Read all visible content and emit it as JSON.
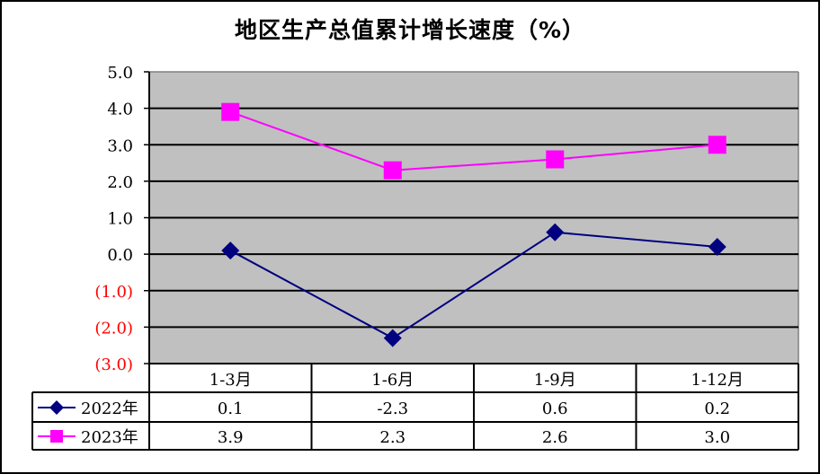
{
  "title": "地区生产总值累计增长速度（%）",
  "colors": {
    "plot_bg": "#C0C0C0",
    "series_2022": "#000080",
    "series_2023": "#FF00FF",
    "negative_tick": "#FF0000",
    "positive_tick": "#000000"
  },
  "y_ticks": [
    "5.0",
    "4.0",
    "3.0",
    "2.0",
    "1.0",
    "0.0",
    "(1.0)",
    "(2.0)",
    "(3.0)"
  ],
  "table": {
    "headers": [
      "1-3月",
      "1-6月",
      "1-9月",
      "1-12月"
    ],
    "rows": [
      {
        "label": "2022年",
        "marker": "diamond-icon",
        "values": [
          "0.1",
          "-2.3",
          "0.6",
          "0.2"
        ]
      },
      {
        "label": "2023年",
        "marker": "square-icon",
        "values": [
          "3.9",
          "2.3",
          "2.6",
          "3.0"
        ]
      }
    ]
  },
  "chart_data": {
    "type": "line",
    "title": "地区生产总值累计增长速度（%）",
    "categories": [
      "1-3月",
      "1-6月",
      "1-9月",
      "1-12月"
    ],
    "series": [
      {
        "name": "2022年",
        "values": [
          0.1,
          -2.3,
          0.6,
          0.2
        ],
        "color": "#000080",
        "marker": "diamond"
      },
      {
        "name": "2023年",
        "values": [
          3.9,
          2.3,
          2.6,
          3.0
        ],
        "color": "#FF00FF",
        "marker": "square"
      }
    ],
    "xlabel": "",
    "ylabel": "",
    "ylim": [
      -3,
      5
    ],
    "ytick_step": 1,
    "grid": true,
    "legend_position": "data-table",
    "negative_format": "(x.x) in red"
  }
}
